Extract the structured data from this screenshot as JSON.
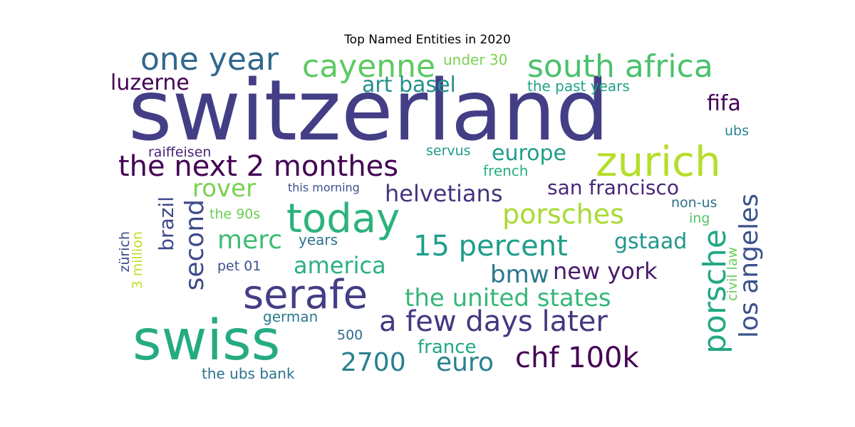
{
  "chart_data": {
    "type": "wordcloud",
    "title": "Top Named Entities in 2020",
    "words": [
      {
        "text": "switzerland",
        "color": "#433e85"
      },
      {
        "text": "swiss",
        "color": "#25ab82"
      },
      {
        "text": "zurich",
        "color": "#b5de2b"
      },
      {
        "text": "today",
        "color": "#2db27d"
      },
      {
        "text": "serafe",
        "color": "#433e85"
      },
      {
        "text": "south africa",
        "color": "#4ac16d"
      },
      {
        "text": "one year",
        "color": "#31688e"
      },
      {
        "text": "cayenne",
        "color": "#5ec962"
      },
      {
        "text": "the next 2 monthes",
        "color": "#440154"
      },
      {
        "text": "a few days later",
        "color": "#453781"
      },
      {
        "text": "chf 100k",
        "color": "#440154"
      },
      {
        "text": "15 percent",
        "color": "#1f9e89"
      },
      {
        "text": "porsches",
        "color": "#a8db34"
      },
      {
        "text": "porsche",
        "color": "#22a884"
      },
      {
        "text": "los angeles",
        "color": "#3b528b"
      },
      {
        "text": "second",
        "color": "#3e4a89"
      },
      {
        "text": "euro",
        "color": "#26828e"
      },
      {
        "text": "2700",
        "color": "#277f8e"
      },
      {
        "text": "the united states",
        "color": "#35b779"
      },
      {
        "text": "helvetians",
        "color": "#46337f"
      },
      {
        "text": "merc",
        "color": "#3dbc74"
      },
      {
        "text": "bmw",
        "color": "#2a788e"
      },
      {
        "text": "new york",
        "color": "#481a6c"
      },
      {
        "text": "san francisco",
        "color": "#482878"
      },
      {
        "text": "art basel",
        "color": "#21918c"
      },
      {
        "text": "rover",
        "color": "#7ad151"
      },
      {
        "text": "europe",
        "color": "#1f9e89"
      },
      {
        "text": "america",
        "color": "#2ab07f"
      },
      {
        "text": "luzerne",
        "color": "#440154"
      },
      {
        "text": "brazil",
        "color": "#3e4989"
      },
      {
        "text": "gstaad",
        "color": "#1f988b"
      },
      {
        "text": "fifa",
        "color": "#440154"
      },
      {
        "text": "france",
        "color": "#22a785"
      },
      {
        "text": "under 30",
        "color": "#7ad151"
      },
      {
        "text": "the past years",
        "color": "#20a386"
      },
      {
        "text": "raiffeisen",
        "color": "#482475"
      },
      {
        "text": "servus",
        "color": "#1f9a8a"
      },
      {
        "text": "french",
        "color": "#29af7f"
      },
      {
        "text": "ubs",
        "color": "#25858e"
      },
      {
        "text": "non-us",
        "color": "#2d708e"
      },
      {
        "text": "ing",
        "color": "#52c569"
      },
      {
        "text": "civil law",
        "color": "#6ccd5a"
      },
      {
        "text": "this morning",
        "color": "#3b528b"
      },
      {
        "text": "the 90s",
        "color": "#6ccd5a"
      },
      {
        "text": "years",
        "color": "#2c728e"
      },
      {
        "text": "pet 01",
        "color": "#3b528b"
      },
      {
        "text": "zürich",
        "color": "#3e4a89"
      },
      {
        "text": "3 million",
        "color": "#c2df23"
      },
      {
        "text": "german",
        "color": "#29798e"
      },
      {
        "text": "500",
        "color": "#31688e"
      },
      {
        "text": "the ubs bank",
        "color": "#2c728e"
      }
    ]
  }
}
